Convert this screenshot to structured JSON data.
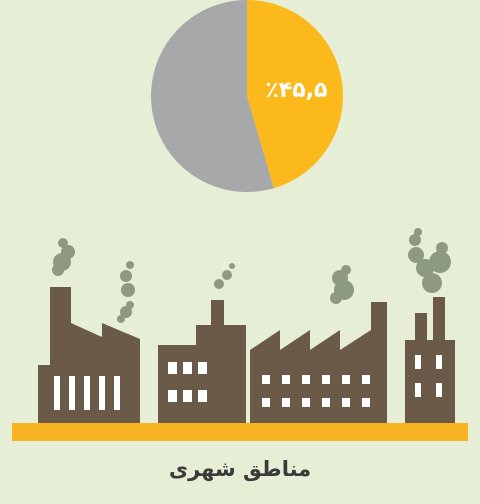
{
  "chart_data": {
    "type": "pie",
    "title": "مناطق شهری",
    "values": [
      45.5,
      54.5
    ],
    "value_labels": [
      "٪۴۵,۵",
      null
    ],
    "colors": [
      "#fbb91c",
      "#a7a8aa"
    ]
  }
}
